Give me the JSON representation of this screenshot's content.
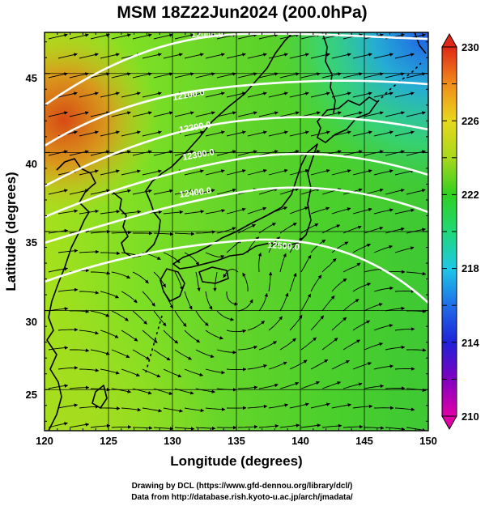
{
  "title": "MSM 18Z22Jun2024 (200.0hPa)",
  "x_axis": {
    "label": "Longitude (degrees)",
    "range": [
      120,
      150
    ],
    "ticks": [
      "120",
      "125",
      "130",
      "135",
      "140",
      "145",
      "150"
    ]
  },
  "y_axis": {
    "label": "Latitude  (degrees)",
    "range": [
      22.4,
      47.6
    ],
    "ticks": [
      "25",
      "30",
      "35",
      "40",
      "45"
    ]
  },
  "colorbar": {
    "range": [
      210,
      230
    ],
    "ticks": [
      "210",
      "214",
      "218",
      "222",
      "226",
      "230"
    ]
  },
  "contours": [
    {
      "label": "12000.0"
    },
    {
      "label": "12100.0"
    },
    {
      "label": "12200.0"
    },
    {
      "label": "12300.0"
    },
    {
      "label": "12400.0"
    },
    {
      "label": "12500.0"
    }
  ],
  "credits": {
    "line1": "Drawing by DCL (https://www.gfd-dennou.org/library/dcl/)",
    "line2": "Data from http://database.rish.kyoto-u.ac.jp/arch/jmadata/"
  },
  "colors": {
    "field_main": "#5fe02a",
    "field_warm": "#d06a1a",
    "field_cold": "#2f7fe0",
    "coast": "#000000",
    "contour": "#ffffff"
  }
}
